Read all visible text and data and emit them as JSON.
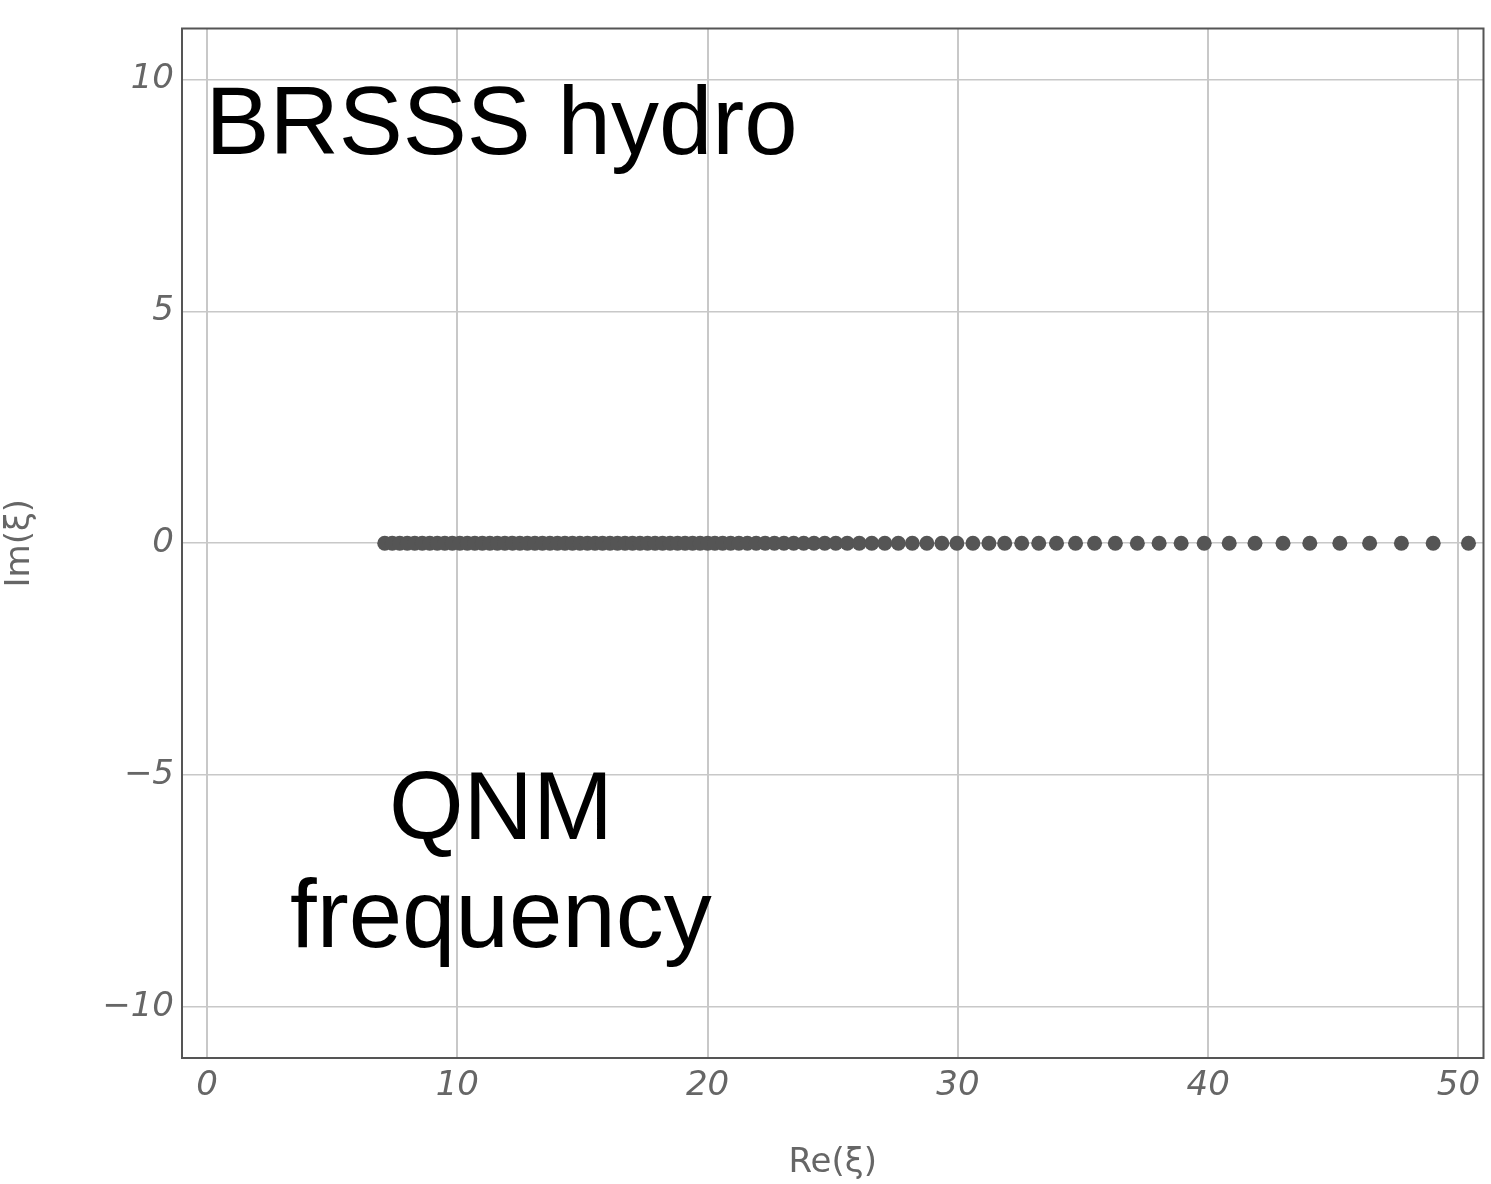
{
  "chart_data": {
    "type": "scatter",
    "xlabel": "Re(ξ)",
    "ylabel": "Im(ξ)",
    "annotations": [
      "BRSSS hydro",
      "QNM\nfrequency"
    ],
    "xlim": [
      -1,
      51
    ],
    "xticks": [
      0,
      10,
      20,
      30,
      40,
      50
    ],
    "ylim": [
      -11.1,
      11.1
    ],
    "yticks": [
      {
        "value": -10,
        "label": "−10"
      },
      {
        "value": -5,
        "label": "−5"
      },
      0,
      5,
      10
    ],
    "grid": true,
    "legend": false,
    "marker": "circle",
    "series": [
      {
        "color": "#555555",
        "x": [
          7.1,
          7.4,
          7.7,
          8.0,
          8.3,
          8.6,
          8.9,
          9.2,
          9.5,
          9.8,
          10.1,
          10.4,
          10.7,
          11.0,
          11.3,
          11.6,
          11.9,
          12.2,
          12.5,
          12.8,
          13.1,
          13.4,
          13.7,
          14.0,
          14.3,
          14.6,
          14.9,
          15.2,
          15.5,
          15.8,
          16.1,
          16.4,
          16.7,
          17.0,
          17.3,
          17.6,
          17.9,
          18.2,
          18.5,
          18.8,
          19.1,
          19.4,
          19.7,
          20.0,
          20.29,
          20.6,
          20.92,
          21.25,
          21.59,
          21.94,
          22.3,
          22.67,
          23.05,
          23.44,
          23.84,
          24.25,
          24.68,
          25.12,
          25.58,
          26.06,
          26.56,
          27.08,
          27.62,
          28.18,
          28.76,
          29.36,
          29.96,
          30.6,
          31.24,
          31.87,
          32.55,
          33.23,
          33.94,
          34.7,
          35.46,
          36.29,
          37.17,
          38.04,
          38.92,
          39.84,
          40.84,
          41.87,
          42.99,
          44.06,
          45.26,
          46.45,
          47.72,
          48.99,
          50.4
        ],
        "values": [
          0,
          0,
          0,
          0,
          0,
          0,
          0,
          0,
          0,
          0,
          0,
          0,
          0,
          0,
          0,
          0,
          0,
          0,
          0,
          0,
          0,
          0,
          0,
          0,
          0,
          0,
          0,
          0,
          0,
          0,
          0,
          0,
          0,
          0,
          0,
          0,
          0,
          0,
          0,
          0,
          0,
          0,
          0,
          0,
          0,
          0,
          0,
          0,
          0,
          0,
          0,
          0,
          0,
          0,
          0,
          0,
          0,
          0,
          0,
          0,
          0,
          0,
          0,
          0,
          0,
          0,
          0,
          0,
          0,
          0,
          0,
          0,
          0,
          0,
          0,
          0,
          0,
          0,
          0,
          0,
          0,
          0,
          0,
          0,
          0,
          0,
          0,
          0,
          0
        ]
      }
    ]
  }
}
